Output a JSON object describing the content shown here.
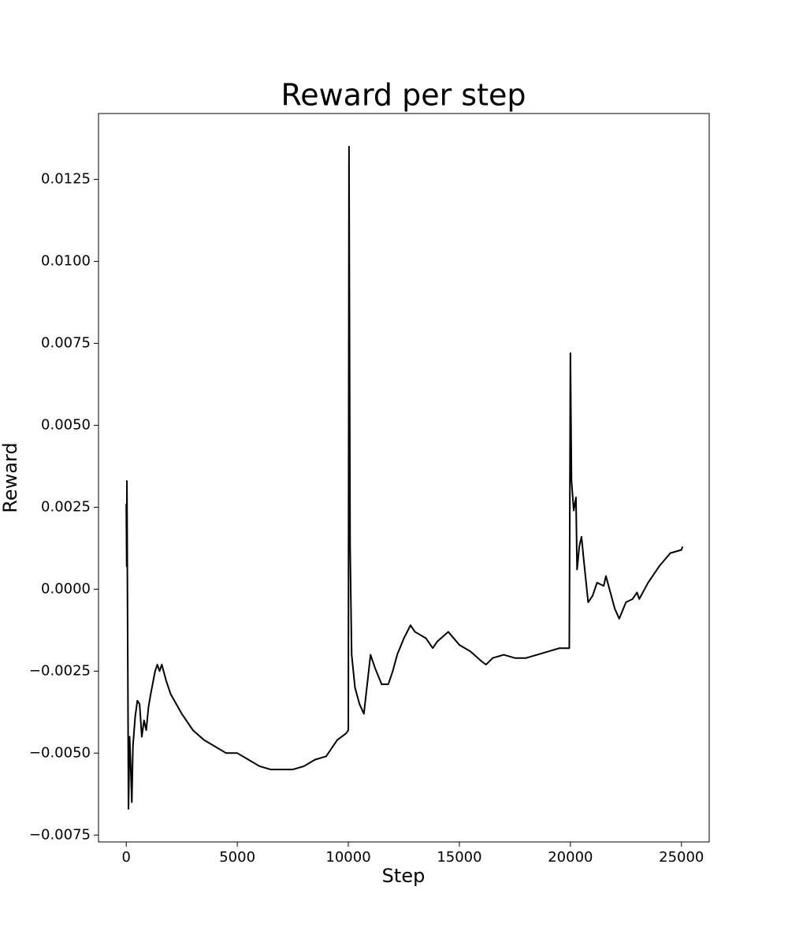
{
  "chart_data": {
    "type": "line",
    "title": "Reward per step",
    "x_label": "Step",
    "y_label": "Reward",
    "xlim": [
      -1250,
      26250
    ],
    "xticks": [
      0,
      5000,
      10000,
      15000,
      20000,
      25000
    ],
    "ylim": [
      -0.00771,
      0.01451
    ],
    "yticks": [
      {
        "value": -0.0075,
        "label": "−0.0075"
      },
      {
        "value": -0.005,
        "label": "−0.0050"
      },
      {
        "value": -0.0025,
        "label": "−0.0025"
      },
      {
        "value": 0,
        "label": "0.0000"
      },
      0.0025,
      {
        "value": 0.005,
        "label": "0.0050"
      },
      0.0075,
      {
        "value": 0.01,
        "label": "0.0100"
      },
      0.0125
    ],
    "series": [
      {
        "name": "Reward",
        "color": "#000000",
        "x": [
          0,
          20,
          30,
          100,
          150,
          200,
          250,
          300,
          400,
          500,
          600,
          700,
          800,
          900,
          1000,
          1100,
          1300,
          1400,
          1500,
          1600,
          1800,
          2000,
          2500,
          3000,
          3500,
          4000,
          4500,
          5000,
          5500,
          6000,
          6500,
          7000,
          7500,
          8000,
          8500,
          9000,
          9500,
          9900,
          10000,
          10030,
          10080,
          10150,
          10300,
          10500,
          10700,
          10850,
          11000,
          11200,
          11500,
          11800,
          12000,
          12200,
          12500,
          12800,
          13000,
          13500,
          13800,
          14000,
          14500,
          15000,
          15500,
          16000,
          16200,
          16500,
          17000,
          17500,
          18000,
          18500,
          19000,
          19500,
          19950,
          20000,
          20050,
          20150,
          20250,
          20300,
          20400,
          20500,
          20600,
          20800,
          21000,
          21200,
          21500,
          21600,
          21800,
          22000,
          22200,
          22500,
          22800,
          23000,
          23100,
          23500,
          24000,
          24500,
          25000,
          25050
        ],
        "values": [
          0.0026,
          0.0007,
          0.0033,
          -0.0067,
          -0.0045,
          -0.0054,
          -0.0065,
          -0.0048,
          -0.0039,
          -0.0034,
          -0.0035,
          -0.0045,
          -0.004,
          -0.0043,
          -0.0036,
          -0.0032,
          -0.0025,
          -0.0023,
          -0.0025,
          -0.0023,
          -0.0028,
          -0.0032,
          -0.0038,
          -0.0043,
          -0.0046,
          -0.0048,
          -0.005,
          -0.005,
          -0.0052,
          -0.0054,
          -0.0055,
          -0.0055,
          -0.0055,
          -0.0054,
          -0.0052,
          -0.0051,
          -0.0046,
          -0.0044,
          -0.0043,
          0.0135,
          0.0013,
          -0.002,
          -0.003,
          -0.0035,
          -0.0038,
          -0.0029,
          -0.002,
          -0.0024,
          -0.0029,
          -0.0029,
          -0.0025,
          -0.002,
          -0.0015,
          -0.0011,
          -0.0013,
          -0.0015,
          -0.0018,
          -0.0016,
          -0.0013,
          -0.0017,
          -0.0019,
          -0.0022,
          -0.0023,
          -0.0021,
          -0.002,
          -0.0021,
          -0.0021,
          -0.002,
          -0.0019,
          -0.0018,
          -0.0018,
          0.0072,
          0.0033,
          0.0024,
          0.0028,
          0.0006,
          0.0013,
          0.0016,
          0.0009,
          -0.0004,
          -0.0002,
          0.0002,
          0.0001,
          0.0004,
          -0.0001,
          -0.0006,
          -0.0009,
          -0.0004,
          -0.0003,
          -0.0001,
          -0.0003,
          0.0002,
          0.0007,
          0.0011,
          0.0012,
          0.0013
        ]
      }
    ]
  }
}
